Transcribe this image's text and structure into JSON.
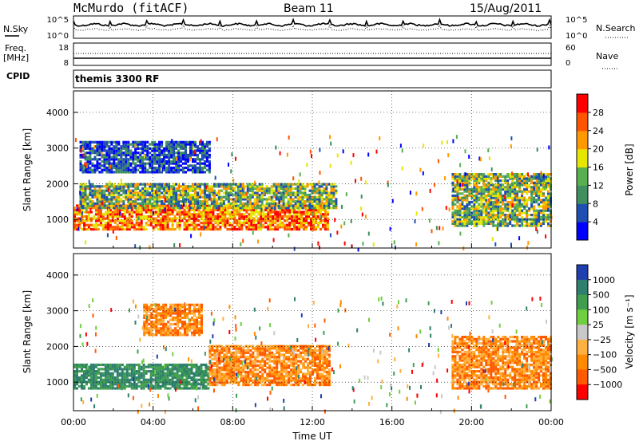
{
  "header": {
    "station": "McMurdo (fitACF)",
    "beam": "Beam 11",
    "date": "15/Aug/2011"
  },
  "noise_panel": {
    "left_label": "N.Sky",
    "left_ticks": [
      "10^5",
      "10^0"
    ],
    "right_label": "N.Search",
    "right_ticks": [
      "10^5",
      "10^0"
    ]
  },
  "freq_panel": {
    "left_label_1": "Freq.",
    "left_label_2": "[MHz]",
    "left_ticks": [
      "18",
      "8"
    ],
    "right_label": "Nave",
    "right_ticks": [
      "60",
      "0"
    ],
    "cpid_label": "CPID",
    "cpid_value": "themis 3300 RF"
  },
  "chart_data": [
    {
      "type": "heatmap",
      "name": "power",
      "ylabel": "Slant Range [km]",
      "yticks": [
        1000,
        2000,
        3000,
        4000
      ],
      "ylim": [
        200,
        4600
      ],
      "xlim_hours": [
        0,
        24
      ],
      "colorbar": {
        "label": "Power [dB]",
        "ticks": [
          "4",
          "8",
          "12",
          "16",
          "20",
          "24",
          "28"
        ],
        "colors": [
          "#0000ff",
          "#1f4fb0",
          "#3f8f5f",
          "#58b050",
          "#e6e600",
          "#ff9900",
          "#ff5500",
          "#ff0000"
        ]
      },
      "regions": [
        {
          "t0": 0.0,
          "t1": 12.8,
          "r0": 700,
          "r1": 1400,
          "level": "high"
        },
        {
          "t0": 0.3,
          "t1": 13.2,
          "r0": 1300,
          "r1": 2000,
          "level": "mid"
        },
        {
          "t0": 0.3,
          "t1": 6.8,
          "r0": 2300,
          "r1": 3200,
          "level": "low"
        },
        {
          "t0": 19.0,
          "t1": 24.0,
          "r0": 800,
          "r1": 2300,
          "level": "mid"
        }
      ]
    },
    {
      "type": "heatmap",
      "name": "velocity",
      "ylabel": "Slant Range [km]",
      "yticks": [
        1000,
        2000,
        3000,
        4000
      ],
      "ylim": [
        200,
        4600
      ],
      "xlim_hours": [
        0,
        24
      ],
      "xticks": [
        "00:00",
        "04:00",
        "08:00",
        "12:00",
        "16:00",
        "20:00",
        "00:00"
      ],
      "xlabel": "Time UT",
      "colorbar": {
        "label": "Velocity [m s⁻¹]",
        "ticks": [
          "1000",
          "500",
          "100",
          "25",
          "−25",
          "−100",
          "−500",
          "−1000"
        ],
        "colors": [
          "#1f3fb0",
          "#2f7f6f",
          "#3f9f4f",
          "#6fcf3f",
          "#c8c8c8",
          "#ffb040",
          "#ff8a00",
          "#ff5a00",
          "#ff0000"
        ]
      },
      "regions": [
        {
          "t0": 0.0,
          "t1": 6.8,
          "r0": 800,
          "r1": 1500,
          "level": "positive"
        },
        {
          "t0": 6.8,
          "t1": 12.8,
          "r0": 900,
          "r1": 2000,
          "level": "negative"
        },
        {
          "t0": 3.5,
          "t1": 6.5,
          "r0": 2300,
          "r1": 3200,
          "level": "negative"
        },
        {
          "t0": 19.0,
          "t1": 24.0,
          "r0": 800,
          "r1": 2300,
          "level": "negative"
        }
      ]
    }
  ]
}
